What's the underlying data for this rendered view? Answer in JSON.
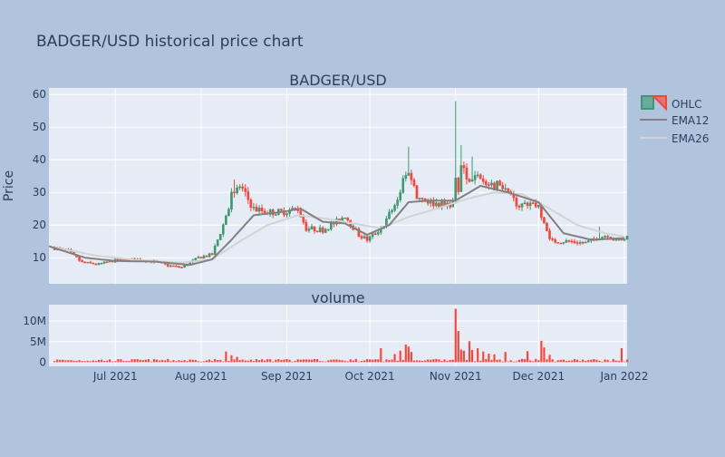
{
  "page_title": "BADGER/USD historical price chart",
  "colors": {
    "background": "#b0c4de",
    "plot_background": "#e5ecf6",
    "grid": "#ffffff",
    "text": "#2a3f5f",
    "increasing": "#3d9970",
    "decreasing": "#ff4136",
    "ema12": "#808080",
    "ema26": "#d3d3d3"
  },
  "chart_data": [
    {
      "type": "candlestick",
      "title": "BADGER/USD",
      "ylabel": "Price",
      "ylim": [
        2,
        62
      ],
      "yticks": [
        10,
        20,
        30,
        40,
        50,
        60
      ],
      "xlim": [
        "2021-06-07",
        "2022-01-02"
      ],
      "xticks": [
        {
          "date": "2021-07-01",
          "label": "Jul 2021"
        },
        {
          "date": "2021-08-01",
          "label": "Aug 2021"
        },
        {
          "date": "2021-09-01",
          "label": "Sep 2021"
        },
        {
          "date": "2021-10-01",
          "label": "Oct 2021"
        },
        {
          "date": "2021-11-01",
          "label": "Nov 2021"
        },
        {
          "date": "2021-12-01",
          "label": "Dec 2021"
        },
        {
          "date": "2022-01-01",
          "label": "Jan 2022"
        }
      ],
      "grid": true,
      "legend": "top-right",
      "series": [
        {
          "name": "OHLC",
          "type": "ohlc"
        },
        {
          "name": "EMA12",
          "type": "line"
        },
        {
          "name": "EMA26",
          "type": "line"
        }
      ],
      "close_anchors": [
        [
          "2021-06-09",
          13.0
        ],
        [
          "2021-06-14",
          12.0
        ],
        [
          "2021-06-19",
          8.5
        ],
        [
          "2021-06-25",
          8.0
        ],
        [
          "2021-07-01",
          9.2
        ],
        [
          "2021-07-08",
          9.5
        ],
        [
          "2021-07-15",
          8.8
        ],
        [
          "2021-07-20",
          7.6
        ],
        [
          "2021-07-25",
          7.0
        ],
        [
          "2021-07-31",
          10.0
        ],
        [
          "2021-08-05",
          11.0
        ],
        [
          "2021-08-09",
          20.0
        ],
        [
          "2021-08-12",
          29.0
        ],
        [
          "2021-08-15",
          32.0
        ],
        [
          "2021-08-20",
          25.0
        ],
        [
          "2021-08-25",
          24.0
        ],
        [
          "2021-08-30",
          24.0
        ],
        [
          "2021-09-05",
          25.0
        ],
        [
          "2021-09-08",
          19.0
        ],
        [
          "2021-09-14",
          18.5
        ],
        [
          "2021-09-19",
          21.0
        ],
        [
          "2021-09-22",
          23.0
        ],
        [
          "2021-09-27",
          17.0
        ],
        [
          "2021-09-30",
          15.5
        ],
        [
          "2021-10-05",
          19.0
        ],
        [
          "2021-10-10",
          26.0
        ],
        [
          "2021-10-13",
          33.0
        ],
        [
          "2021-10-15",
          37.0
        ],
        [
          "2021-10-18",
          29.0
        ],
        [
          "2021-10-23",
          27.0
        ],
        [
          "2021-10-28",
          26.0
        ],
        [
          "2021-10-31",
          27.0
        ],
        [
          "2021-11-01",
          33.0
        ],
        [
          "2021-11-02",
          30.0
        ],
        [
          "2021-11-03",
          38.0
        ],
        [
          "2021-11-06",
          33.0
        ],
        [
          "2021-11-09",
          36.0
        ],
        [
          "2021-11-13",
          31.0
        ],
        [
          "2021-11-17",
          33.0
        ],
        [
          "2021-11-20",
          29.0
        ],
        [
          "2021-11-24",
          26.0
        ],
        [
          "2021-11-28",
          27.0
        ],
        [
          "2021-12-01",
          26.0
        ],
        [
          "2021-12-04",
          18.0
        ],
        [
          "2021-12-06",
          15.0
        ],
        [
          "2021-12-12",
          15.0
        ],
        [
          "2021-12-18",
          14.5
        ],
        [
          "2021-12-22",
          16.0
        ],
        [
          "2021-12-26",
          17.0
        ],
        [
          "2021-12-29",
          15.0
        ],
        [
          "2022-01-01",
          16.0
        ]
      ],
      "price_spikes": [
        [
          "2021-10-15",
          44.0
        ],
        [
          "2021-11-01",
          58.0
        ],
        [
          "2021-11-03",
          44.5
        ],
        [
          "2021-11-07",
          41.0
        ],
        [
          "2021-08-13",
          34.0
        ],
        [
          "2021-12-23",
          19.5
        ]
      ],
      "ema12_anchors": [
        [
          "2021-06-07",
          13.5
        ],
        [
          "2021-06-20",
          10.0
        ],
        [
          "2021-07-01",
          9.0
        ],
        [
          "2021-07-15",
          8.8
        ],
        [
          "2021-07-28",
          7.8
        ],
        [
          "2021-08-05",
          9.5
        ],
        [
          "2021-08-12",
          15.5
        ],
        [
          "2021-08-20",
          23.0
        ],
        [
          "2021-08-30",
          24.0
        ],
        [
          "2021-09-06",
          25.0
        ],
        [
          "2021-09-14",
          21.0
        ],
        [
          "2021-09-22",
          20.5
        ],
        [
          "2021-09-30",
          17.0
        ],
        [
          "2021-10-08",
          20.0
        ],
        [
          "2021-10-15",
          27.0
        ],
        [
          "2021-10-22",
          27.5
        ],
        [
          "2021-11-01",
          27.5
        ],
        [
          "2021-11-10",
          32.0
        ],
        [
          "2021-11-20",
          30.0
        ],
        [
          "2021-12-01",
          27.0
        ],
        [
          "2021-12-10",
          17.5
        ],
        [
          "2021-12-20",
          15.5
        ],
        [
          "2022-01-01",
          16.0
        ]
      ],
      "ema26_anchors": [
        [
          "2021-06-07",
          13.5
        ],
        [
          "2021-06-25",
          10.5
        ],
        [
          "2021-07-10",
          9.2
        ],
        [
          "2021-07-25",
          8.5
        ],
        [
          "2021-08-05",
          9.5
        ],
        [
          "2021-08-15",
          15.0
        ],
        [
          "2021-08-25",
          20.0
        ],
        [
          "2021-09-05",
          23.0
        ],
        [
          "2021-09-15",
          22.0
        ],
        [
          "2021-09-25",
          20.5
        ],
        [
          "2021-10-05",
          19.0
        ],
        [
          "2021-10-15",
          22.5
        ],
        [
          "2021-10-25",
          25.0
        ],
        [
          "2021-11-05",
          28.0
        ],
        [
          "2021-11-15",
          30.0
        ],
        [
          "2021-11-25",
          29.5
        ],
        [
          "2021-12-05",
          25.0
        ],
        [
          "2021-12-15",
          20.0
        ],
        [
          "2021-12-25",
          17.5
        ],
        [
          "2022-01-01",
          16.5
        ]
      ]
    },
    {
      "type": "bar",
      "title": "volume",
      "ylim": [
        -1000000,
        14000000
      ],
      "yticks": [
        {
          "value": 0,
          "label": "0"
        },
        {
          "value": 5000000,
          "label": "5M"
        },
        {
          "value": 10000000,
          "label": "10M"
        }
      ],
      "color": "#ff4136",
      "volume_spikes": [
        [
          "2021-08-10",
          2600000
        ],
        [
          "2021-08-12",
          1700000
        ],
        [
          "2021-08-14",
          1300000
        ],
        [
          "2021-10-05",
          3400000
        ],
        [
          "2021-10-10",
          2000000
        ],
        [
          "2021-10-12",
          2800000
        ],
        [
          "2021-10-14",
          4300000
        ],
        [
          "2021-10-15",
          3800000
        ],
        [
          "2021-10-16",
          2500000
        ],
        [
          "2021-11-01",
          13000000
        ],
        [
          "2021-11-02",
          7600000
        ],
        [
          "2021-11-03",
          3100000
        ],
        [
          "2021-11-04",
          2800000
        ],
        [
          "2021-11-06",
          5100000
        ],
        [
          "2021-11-07",
          3000000
        ],
        [
          "2021-11-09",
          3400000
        ],
        [
          "2021-11-11",
          2600000
        ],
        [
          "2021-11-13",
          2100000
        ],
        [
          "2021-11-15",
          1900000
        ],
        [
          "2021-11-19",
          2500000
        ],
        [
          "2021-11-27",
          2700000
        ],
        [
          "2021-12-02",
          5200000
        ],
        [
          "2021-12-03",
          3600000
        ],
        [
          "2021-12-05",
          1800000
        ],
        [
          "2021-12-31",
          3400000
        ]
      ]
    }
  ]
}
